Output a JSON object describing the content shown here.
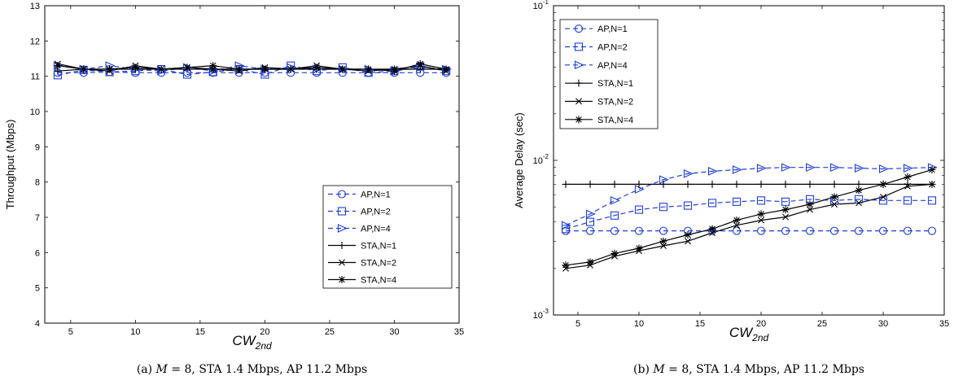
{
  "colors": {
    "ap": "#1f3fd6",
    "sta": "#000000"
  },
  "chart_data": [
    {
      "type": "line",
      "title": "",
      "xlabel": "CW",
      "xlabel_sub": "2nd",
      "ylabel": "Throughput (Mbps)",
      "xlim": [
        3,
        35
      ],
      "ylim": [
        4,
        13
      ],
      "xticks": [
        "5",
        "10",
        "15",
        "20",
        "25",
        "30",
        "35"
      ],
      "yticks": [
        "4",
        "5",
        "6",
        "7",
        "8",
        "9",
        "10",
        "11",
        "12",
        "13"
      ],
      "legend": "bottom-right",
      "caption": {
        "label": "(a)",
        "math": "M",
        "rest": "= 8, STA 1.4 Mbps, AP 11.2 Mbps"
      },
      "x": [
        4,
        6,
        8,
        10,
        12,
        14,
        16,
        18,
        20,
        22,
        24,
        26,
        28,
        30,
        32,
        34
      ],
      "series": [
        {
          "name": "AP,N=1",
          "marker": "circle",
          "style": "dashed",
          "color": "#1f3fd6",
          "values": [
            11.1,
            11.1,
            11.12,
            11.1,
            11.1,
            11.1,
            11.1,
            11.1,
            11.1,
            11.1,
            11.1,
            11.1,
            11.1,
            11.1,
            11.1,
            11.1
          ]
        },
        {
          "name": "AP,N=2",
          "marker": "square",
          "style": "dashed",
          "color": "#1f3fd6",
          "values": [
            11.03,
            11.18,
            11.12,
            11.15,
            11.2,
            11.05,
            11.12,
            11.2,
            11.05,
            11.3,
            11.15,
            11.25,
            11.1,
            11.15,
            11.28,
            11.15
          ]
        },
        {
          "name": "AP,N=4",
          "marker": "triangle",
          "style": "dashed",
          "color": "#1f3fd6",
          "values": [
            11.3,
            11.2,
            11.3,
            11.2,
            11.15,
            11.25,
            11.15,
            11.3,
            11.2,
            11.25,
            11.2,
            11.2,
            11.2,
            11.15,
            11.25,
            11.2
          ]
        },
        {
          "name": "STA,N=1",
          "marker": "plus",
          "style": "solid",
          "color": "#000000",
          "values": [
            11.15,
            11.2,
            11.2,
            11.2,
            11.2,
            11.2,
            11.2,
            11.2,
            11.2,
            11.2,
            11.2,
            11.2,
            11.2,
            11.2,
            11.2,
            11.2
          ]
        },
        {
          "name": "STA,N=2",
          "marker": "x",
          "style": "solid",
          "color": "#000000",
          "values": [
            11.35,
            11.2,
            11.15,
            11.3,
            11.2,
            11.25,
            11.2,
            11.15,
            11.25,
            11.2,
            11.3,
            11.2,
            11.15,
            11.2,
            11.3,
            11.15
          ]
        },
        {
          "name": "STA,N=4",
          "marker": "star",
          "style": "solid",
          "color": "#000000",
          "values": [
            11.3,
            11.2,
            11.2,
            11.25,
            11.2,
            11.25,
            11.3,
            11.2,
            11.2,
            11.2,
            11.25,
            11.2,
            11.2,
            11.15,
            11.35,
            11.2
          ]
        }
      ]
    },
    {
      "type": "line",
      "title": "",
      "xlabel": "CW",
      "xlabel_sub": "2nd",
      "ylabel": "Average Delay (sec)",
      "yscale": "log",
      "xlim": [
        3,
        35
      ],
      "ylim": [
        0.001,
        0.1
      ],
      "xticks": [
        "5",
        "10",
        "15",
        "20",
        "25",
        "30",
        "35"
      ],
      "ytick_labels": [
        {
          "base": "10",
          "exp": "-3"
        },
        {
          "base": "10",
          "exp": "-2"
        },
        {
          "base": "10",
          "exp": "-1"
        }
      ],
      "legend": "top-left",
      "caption": {
        "label": "(b)",
        "math": "M",
        "rest": "= 8, STA 1.4 Mbps, AP 11.2 Mbps"
      },
      "x": [
        4,
        6,
        8,
        10,
        12,
        14,
        16,
        18,
        20,
        22,
        24,
        26,
        28,
        30,
        32,
        34
      ],
      "series": [
        {
          "name": "AP,N=1",
          "marker": "circle",
          "style": "dashed",
          "color": "#1f3fd6",
          "values": [
            0.0035,
            0.0035,
            0.0035,
            0.0035,
            0.0035,
            0.0035,
            0.0035,
            0.0035,
            0.0035,
            0.0035,
            0.0035,
            0.0035,
            0.0035,
            0.0035,
            0.0035,
            0.0035
          ]
        },
        {
          "name": "AP,N=2",
          "marker": "square",
          "style": "dashed",
          "color": "#1f3fd6",
          "values": [
            0.0036,
            0.004,
            0.0044,
            0.0048,
            0.005,
            0.0051,
            0.0053,
            0.0054,
            0.0055,
            0.0054,
            0.0056,
            0.0055,
            0.0056,
            0.0055,
            0.0055,
            0.0055
          ]
        },
        {
          "name": "AP,N=4",
          "marker": "triangle",
          "style": "dashed",
          "color": "#1f3fd6",
          "values": [
            0.0038,
            0.0045,
            0.0055,
            0.0065,
            0.0075,
            0.0082,
            0.0085,
            0.0087,
            0.0089,
            0.009,
            0.009,
            0.009,
            0.0089,
            0.0088,
            0.0089,
            0.009
          ]
        },
        {
          "name": "STA,N=1",
          "marker": "plus",
          "style": "solid",
          "color": "#000000",
          "values": [
            0.007,
            0.007,
            0.007,
            0.007,
            0.007,
            0.007,
            0.007,
            0.007,
            0.007,
            0.007,
            0.007,
            0.007,
            0.007,
            0.007,
            0.007,
            0.007
          ]
        },
        {
          "name": "STA,N=2",
          "marker": "x",
          "style": "solid",
          "color": "#000000",
          "values": [
            0.002,
            0.0021,
            0.0024,
            0.0026,
            0.0028,
            0.003,
            0.0034,
            0.0038,
            0.0041,
            0.0043,
            0.0048,
            0.0052,
            0.0053,
            0.0058,
            0.0068,
            0.007
          ]
        },
        {
          "name": "STA,N=4",
          "marker": "star",
          "style": "solid",
          "color": "#000000",
          "values": [
            0.0021,
            0.0022,
            0.0025,
            0.0027,
            0.003,
            0.0033,
            0.0036,
            0.0041,
            0.0045,
            0.0048,
            0.0052,
            0.0058,
            0.0064,
            0.007,
            0.0078,
            0.0087
          ]
        }
      ]
    }
  ]
}
